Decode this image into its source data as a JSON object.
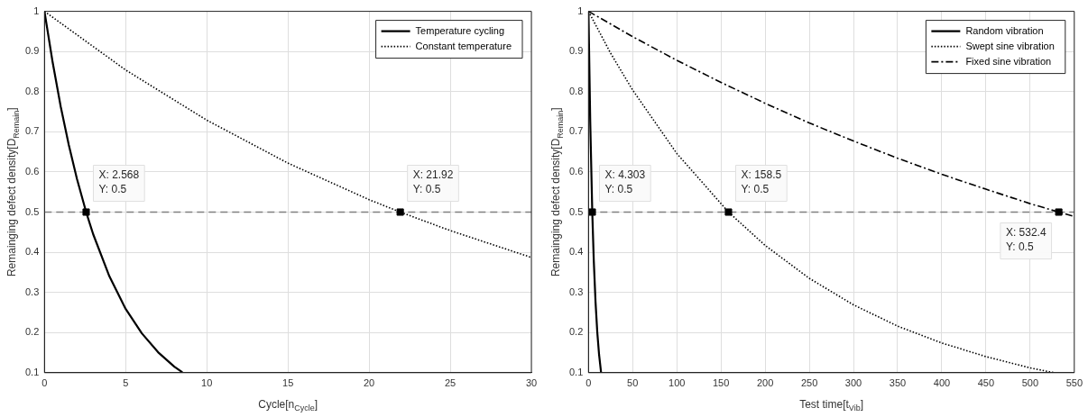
{
  "chart_data": [
    {
      "type": "line",
      "xlabel": "Cycle[n$_{Cycle}$]",
      "ylabel": "Remainging defect density[D$_{Remain}$]",
      "xlim": [
        0,
        30
      ],
      "xticks": [
        0,
        5,
        10,
        15,
        20,
        25,
        30
      ],
      "ylim": [
        0.1,
        1
      ],
      "yticks": [
        0.1,
        0.2,
        0.3,
        0.4,
        0.5,
        0.6,
        0.7,
        0.8,
        0.9,
        1
      ],
      "grid": true,
      "legend": "top right",
      "series": [
        {
          "name": "Temperature cycling",
          "line_style": "solid",
          "color": "#000000",
          "x": [
            0,
            0.5,
            1,
            1.5,
            2,
            2.568,
            3,
            4,
            5,
            6,
            7,
            8,
            8.5
          ],
          "values": [
            1,
            0.874,
            0.763,
            0.667,
            0.583,
            0.5,
            0.445,
            0.34,
            0.259,
            0.198,
            0.151,
            0.115,
            0.101
          ]
        },
        {
          "name": "Constant temperature",
          "line_style": "dotted",
          "color": "#000000",
          "x": [
            0,
            5,
            10,
            15,
            20,
            21.92,
            25,
            30
          ],
          "values": [
            1,
            0.854,
            0.729,
            0.622,
            0.531,
            0.5,
            0.454,
            0.387
          ]
        },
        {
          "type": "scatter",
          "marker": "square",
          "color": "#000000",
          "x": [
            2.568,
            21.92
          ],
          "values": [
            0.5,
            0.5
          ]
        }
      ],
      "ref_lines": [
        {
          "axis": "y",
          "value": 0.5,
          "color": "#808080",
          "line_style": "dashed"
        }
      ],
      "annotations": [
        {
          "text": "X: 2.568\nY: 0.5",
          "x": 2.568,
          "y": 0.5
        },
        {
          "text": "X: 21.92\nY: 0.5",
          "x": 21.92,
          "y": 0.5
        }
      ]
    },
    {
      "type": "line",
      "xlabel": "Test time[t$_{Vib}$]",
      "ylabel": "Remainging defect density[D$_{Remain}$]",
      "xlim": [
        0,
        550
      ],
      "xticks": [
        0,
        50,
        100,
        150,
        200,
        250,
        300,
        350,
        400,
        450,
        500,
        550
      ],
      "ylim": [
        0.1,
        1
      ],
      "yticks": [
        0.1,
        0.2,
        0.3,
        0.4,
        0.5,
        0.6,
        0.7,
        0.8,
        0.9,
        1
      ],
      "grid": true,
      "legend": "top right",
      "series": [
        {
          "name": "Random vibration",
          "line_style": "solid",
          "color": "#000000",
          "x": [
            0,
            2,
            4.303,
            6,
            8,
            10,
            12,
            14.3
          ],
          "values": [
            1,
            0.725,
            0.5,
            0.38,
            0.276,
            0.2,
            0.145,
            0.1
          ]
        },
        {
          "name": "Swept sine vibration",
          "line_style": "dotted",
          "color": "#000000",
          "x": [
            0,
            25,
            50,
            100,
            158.5,
            200,
            250,
            300,
            350,
            400,
            450,
            500,
            527
          ],
          "values": [
            1,
            0.896,
            0.804,
            0.646,
            0.5,
            0.417,
            0.335,
            0.269,
            0.216,
            0.174,
            0.14,
            0.112,
            0.1
          ]
        },
        {
          "name": "Fixed sine vibration",
          "line_style": "dashdot",
          "color": "#000000",
          "x": [
            0,
            50,
            100,
            150,
            200,
            250,
            300,
            350,
            400,
            450,
            500,
            532.4,
            550
          ],
          "values": [
            1,
            0.937,
            0.878,
            0.823,
            0.771,
            0.722,
            0.677,
            0.634,
            0.594,
            0.557,
            0.521,
            0.5,
            0.489
          ]
        },
        {
          "type": "scatter",
          "marker": "square",
          "color": "#000000",
          "x": [
            4.303,
            158.5,
            532.4
          ],
          "values": [
            0.5,
            0.5,
            0.5
          ]
        }
      ],
      "ref_lines": [
        {
          "axis": "y",
          "value": 0.5,
          "color": "#808080",
          "line_style": "dashed"
        }
      ],
      "annotations": [
        {
          "text": "X: 4.303\nY: 0.5",
          "x": 4.303,
          "y": 0.5
        },
        {
          "text": "X: 158.5\nY: 0.5",
          "x": 158.5,
          "y": 0.5
        },
        {
          "text": "X: 532.4\nY: 0.5",
          "x": 532.4,
          "y": 0.5
        }
      ]
    }
  ]
}
